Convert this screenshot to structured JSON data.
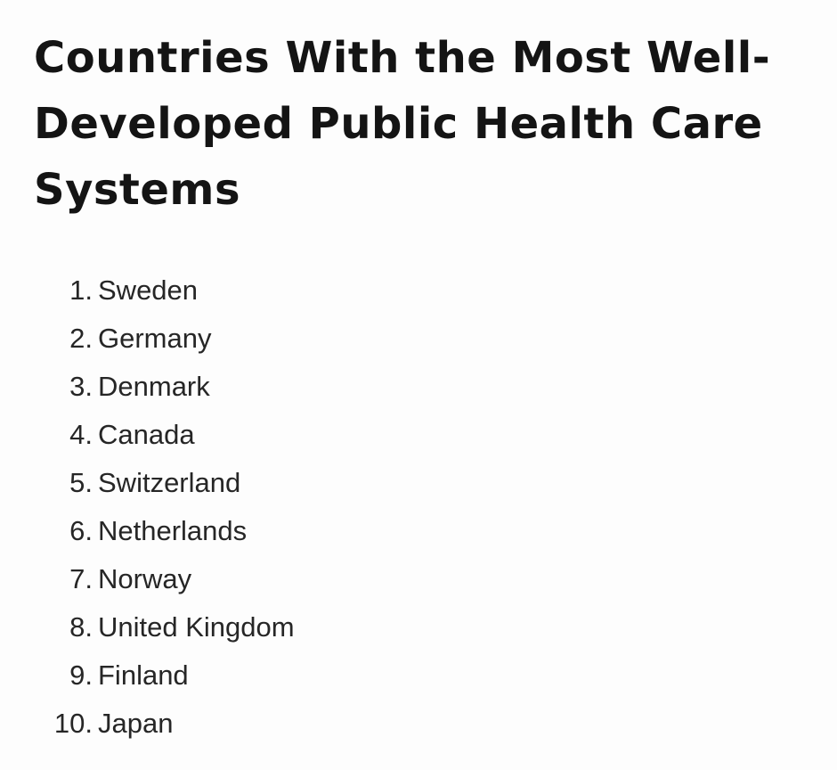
{
  "title": "Countries With the Most Well-Developed Public Health Care Systems",
  "list": [
    {
      "num": "1.",
      "label": "Sweden"
    },
    {
      "num": "2.",
      "label": "Germany"
    },
    {
      "num": "3.",
      "label": "Denmark"
    },
    {
      "num": "4.",
      "label": "Canada"
    },
    {
      "num": "5.",
      "label": "Switzerland"
    },
    {
      "num": "6.",
      "label": "Netherlands"
    },
    {
      "num": "7.",
      "label": "Norway"
    },
    {
      "num": "8.",
      "label": "United Kingdom"
    },
    {
      "num": "9.",
      "label": "Finland"
    },
    {
      "num": "10.",
      "label": "Japan"
    }
  ]
}
